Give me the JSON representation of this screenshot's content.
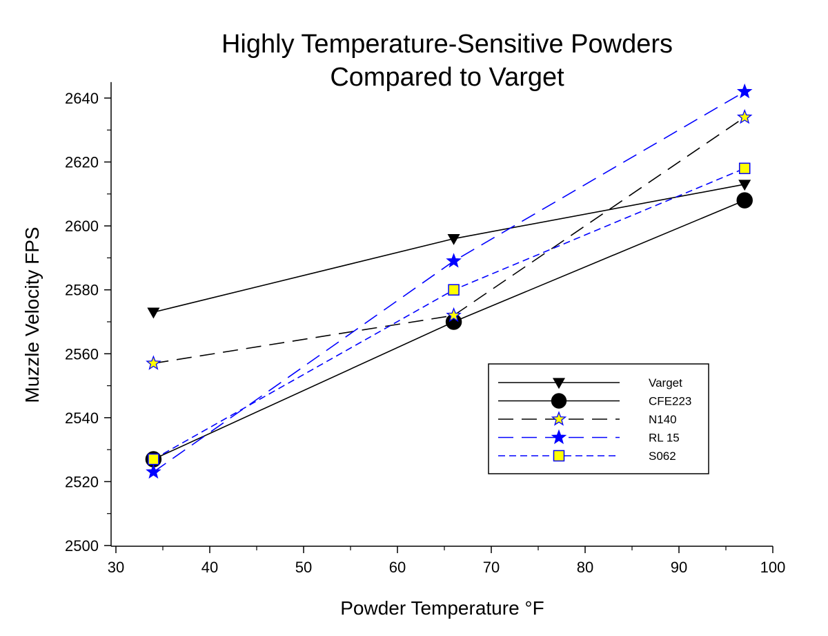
{
  "chart_data": {
    "type": "line",
    "title": "Highly Temperature-Sensitive Powders",
    "subtitle": "Compared to Varget",
    "xlabel": "Powder Temperature °F",
    "ylabel": "Muzzle Velocity FPS",
    "xlim": [
      30,
      100
    ],
    "ylim": [
      2500,
      2645
    ],
    "x_ticks": [
      30,
      40,
      50,
      60,
      70,
      80,
      90,
      100
    ],
    "y_ticks": [
      2500,
      2520,
      2540,
      2560,
      2580,
      2600,
      2620,
      2640
    ],
    "x_tick_labels": [
      "30",
      "40",
      "50",
      "60",
      "70",
      "80",
      "90",
      "100"
    ],
    "y_tick_labels": [
      "2500",
      "2520",
      "2540",
      "2560",
      "2580",
      "2600",
      "2620",
      "2640"
    ],
    "grid": false,
    "legend_position": "lower-right",
    "x": [
      34,
      66,
      97
    ],
    "series": [
      {
        "name": "Varget",
        "values": [
          2573,
          2596,
          2613
        ],
        "color": "#000000",
        "dash": "solid",
        "marker": "triangle-down",
        "marker_fill": "#000000"
      },
      {
        "name": "CFE223",
        "values": [
          2527,
          2570,
          2608
        ],
        "color": "#000000",
        "dash": "solid",
        "marker": "circle",
        "marker_fill": "#000000"
      },
      {
        "name": "N140",
        "values": [
          2557,
          2572,
          2634
        ],
        "color": "#000000",
        "dash": "long-dash",
        "marker": "star",
        "marker_fill": "#ffff00",
        "marker_stroke": "#0000ff"
      },
      {
        "name": "RL 15",
        "values": [
          2523,
          2589,
          2642
        ],
        "color": "#0000ff",
        "dash": "long-dash",
        "marker": "star",
        "marker_fill": "#0000ff",
        "marker_stroke": "#0000ff"
      },
      {
        "name": "S062",
        "values": [
          2527,
          2580,
          2618
        ],
        "color": "#0000ff",
        "dash": "short-dash",
        "marker": "square",
        "marker_fill": "#ffff00",
        "marker_stroke": "#0000ff"
      }
    ]
  }
}
